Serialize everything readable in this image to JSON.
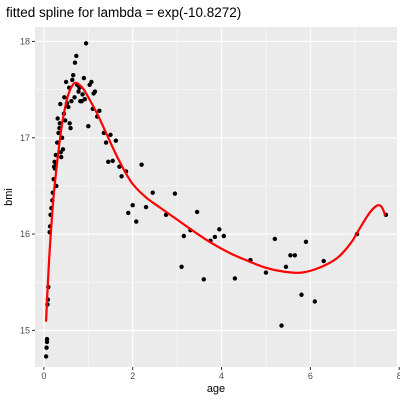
{
  "chart_data": {
    "type": "scatter",
    "title": "fitted spline for lambda = exp(-10.8272)",
    "xlabel": "age",
    "ylabel": "bmi",
    "xlim": [
      -0.2,
      7.95
    ],
    "ylim": [
      14.62,
      18.15
    ],
    "xticks": [
      0,
      2,
      4,
      6,
      8
    ],
    "yticks": [
      15,
      16,
      17,
      18
    ],
    "xtick_labels": [
      "0",
      "2",
      "4",
      "6",
      "8"
    ],
    "ytick_labels": [
      "15",
      "16",
      "17",
      "18"
    ],
    "grid": true,
    "legend": "none",
    "colors": {
      "panel": "#ebebeb",
      "grid": "#ffffff",
      "points": "#000000",
      "line": "#ff0000"
    },
    "series": [
      {
        "type": "scatter",
        "points": [
          [
            0.05,
            14.73
          ],
          [
            0.06,
            14.82
          ],
          [
            0.07,
            14.88
          ],
          [
            0.07,
            14.91
          ],
          [
            0.08,
            15.27
          ],
          [
            0.09,
            15.32
          ],
          [
            0.1,
            15.45
          ],
          [
            0.13,
            16.02
          ],
          [
            0.14,
            16.08
          ],
          [
            0.15,
            16.2
          ],
          [
            0.17,
            16.27
          ],
          [
            0.19,
            16.35
          ],
          [
            0.2,
            16.43
          ],
          [
            0.22,
            16.57
          ],
          [
            0.23,
            16.7
          ],
          [
            0.24,
            16.75
          ],
          [
            0.25,
            16.68
          ],
          [
            0.27,
            16.74
          ],
          [
            0.27,
            16.82
          ],
          [
            0.28,
            16.5
          ],
          [
            0.3,
            16.95
          ],
          [
            0.31,
            17.2
          ],
          [
            0.33,
            17.05
          ],
          [
            0.35,
            17.1
          ],
          [
            0.36,
            17.15
          ],
          [
            0.37,
            17.35
          ],
          [
            0.38,
            16.85
          ],
          [
            0.39,
            16.8
          ],
          [
            0.41,
            17.0
          ],
          [
            0.43,
            16.88
          ],
          [
            0.45,
            17.25
          ],
          [
            0.46,
            17.42
          ],
          [
            0.48,
            17.18
          ],
          [
            0.5,
            17.58
          ],
          [
            0.52,
            17.36
          ],
          [
            0.55,
            17.32
          ],
          [
            0.57,
            17.52
          ],
          [
            0.58,
            17.15
          ],
          [
            0.6,
            17.1
          ],
          [
            0.62,
            17.38
          ],
          [
            0.64,
            17.6
          ],
          [
            0.66,
            17.65
          ],
          [
            0.69,
            17.42
          ],
          [
            0.7,
            17.78
          ],
          [
            0.73,
            17.85
          ],
          [
            0.75,
            17.55
          ],
          [
            0.78,
            17.48
          ],
          [
            0.8,
            17.52
          ],
          [
            0.82,
            17.38
          ],
          [
            0.85,
            17.38
          ],
          [
            0.87,
            17.45
          ],
          [
            0.9,
            17.62
          ],
          [
            0.92,
            17.4
          ],
          [
            0.95,
            17.98
          ],
          [
            1.0,
            17.12
          ],
          [
            1.03,
            17.55
          ],
          [
            1.07,
            17.58
          ],
          [
            1.1,
            17.3
          ],
          [
            1.12,
            17.46
          ],
          [
            1.15,
            17.48
          ],
          [
            1.2,
            17.22
          ],
          [
            1.25,
            17.28
          ],
          [
            1.35,
            17.05
          ],
          [
            1.4,
            16.95
          ],
          [
            1.45,
            16.75
          ],
          [
            1.5,
            17.03
          ],
          [
            1.55,
            16.76
          ],
          [
            1.62,
            16.97
          ],
          [
            1.7,
            16.7
          ],
          [
            1.75,
            16.6
          ],
          [
            1.85,
            16.65
          ],
          [
            1.9,
            16.22
          ],
          [
            2.0,
            16.3
          ],
          [
            2.08,
            16.13
          ],
          [
            2.2,
            16.72
          ],
          [
            2.3,
            16.28
          ],
          [
            2.45,
            16.43
          ],
          [
            2.75,
            16.2
          ],
          [
            2.95,
            16.42
          ],
          [
            3.1,
            15.66
          ],
          [
            3.15,
            15.98
          ],
          [
            3.3,
            16.04
          ],
          [
            3.45,
            16.23
          ],
          [
            3.6,
            15.53
          ],
          [
            3.75,
            15.93
          ],
          [
            3.85,
            15.97
          ],
          [
            3.95,
            16.05
          ],
          [
            4.05,
            15.98
          ],
          [
            4.3,
            15.54
          ],
          [
            4.65,
            15.73
          ],
          [
            5.0,
            15.6
          ],
          [
            5.2,
            15.95
          ],
          [
            5.35,
            15.05
          ],
          [
            5.45,
            15.66
          ],
          [
            5.55,
            15.78
          ],
          [
            5.65,
            15.78
          ],
          [
            5.8,
            15.37
          ],
          [
            5.9,
            15.92
          ],
          [
            6.1,
            15.3
          ],
          [
            6.3,
            15.72
          ],
          [
            7.05,
            16.0
          ],
          [
            7.7,
            16.2
          ]
        ]
      },
      {
        "type": "line",
        "points": [
          [
            0.05,
            15.1
          ],
          [
            0.08,
            15.4
          ],
          [
            0.12,
            15.75
          ],
          [
            0.17,
            16.1
          ],
          [
            0.22,
            16.4
          ],
          [
            0.3,
            16.75
          ],
          [
            0.38,
            17.05
          ],
          [
            0.45,
            17.25
          ],
          [
            0.55,
            17.45
          ],
          [
            0.65,
            17.55
          ],
          [
            0.72,
            17.57
          ],
          [
            0.8,
            17.55
          ],
          [
            0.9,
            17.5
          ],
          [
            1.0,
            17.42
          ],
          [
            1.2,
            17.25
          ],
          [
            1.4,
            17.05
          ],
          [
            1.6,
            16.85
          ],
          [
            1.8,
            16.67
          ],
          [
            2.0,
            16.52
          ],
          [
            2.3,
            16.38
          ],
          [
            2.6,
            16.28
          ],
          [
            3.0,
            16.15
          ],
          [
            3.4,
            16.02
          ],
          [
            3.8,
            15.9
          ],
          [
            4.2,
            15.8
          ],
          [
            4.6,
            15.72
          ],
          [
            5.0,
            15.65
          ],
          [
            5.4,
            15.61
          ],
          [
            5.8,
            15.6
          ],
          [
            6.2,
            15.65
          ],
          [
            6.6,
            15.75
          ],
          [
            6.9,
            15.9
          ],
          [
            7.1,
            16.05
          ],
          [
            7.3,
            16.2
          ],
          [
            7.45,
            16.28
          ],
          [
            7.55,
            16.3
          ],
          [
            7.62,
            16.27
          ],
          [
            7.68,
            16.2
          ]
        ]
      }
    ]
  }
}
